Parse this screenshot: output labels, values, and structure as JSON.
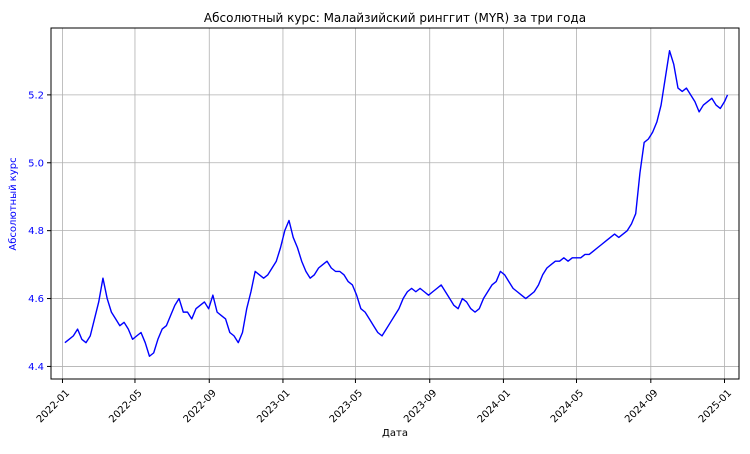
{
  "colors": {
    "line": "#0000ff",
    "ylabel": "#0000ff",
    "ytick": "#0000ff",
    "text": "#000000",
    "grid": "#b0b0b0",
    "axes": "#000000",
    "background": "#ffffff"
  },
  "chart_data": {
    "type": "line",
    "title": "Абсолютный курс: Малайзийский ринггит (MYR) за три года",
    "xlabel": "Дата",
    "ylabel": "Абсолютный курс",
    "grid": true,
    "legend": "none",
    "xlim": [
      "2021-12-13",
      "2025-01-25"
    ],
    "ylim": [
      4.363,
      5.397
    ],
    "x_ticks": [
      {
        "date": "2022-01-01",
        "label": "2022-01"
      },
      {
        "date": "2022-05-01",
        "label": "2022-05"
      },
      {
        "date": "2022-09-01",
        "label": "2022-09"
      },
      {
        "date": "2023-01-01",
        "label": "2023-01"
      },
      {
        "date": "2023-05-01",
        "label": "2023-05"
      },
      {
        "date": "2023-09-01",
        "label": "2023-09"
      },
      {
        "date": "2024-01-01",
        "label": "2024-01"
      },
      {
        "date": "2024-05-01",
        "label": "2024-05"
      },
      {
        "date": "2024-09-01",
        "label": "2024-09"
      },
      {
        "date": "2025-01-01",
        "label": "2025-01"
      }
    ],
    "y_ticks": [
      {
        "value": 4.4,
        "label": "4.4"
      },
      {
        "value": 4.6,
        "label": "4.6"
      },
      {
        "value": 4.8,
        "label": "4.8"
      },
      {
        "value": 5.0,
        "label": "5.0"
      },
      {
        "value": 5.2,
        "label": "5.2"
      }
    ],
    "series": [
      {
        "x": [
          "2022-01-05",
          "2022-01-12",
          "2022-01-19",
          "2022-01-26",
          "2022-02-02",
          "2022-02-09",
          "2022-02-16",
          "2022-02-23",
          "2022-03-02",
          "2022-03-09",
          "2022-03-16",
          "2022-03-23",
          "2022-03-30",
          "2022-04-06",
          "2022-04-13",
          "2022-04-20",
          "2022-04-27",
          "2022-05-04",
          "2022-05-11",
          "2022-05-18",
          "2022-05-25",
          "2022-06-01",
          "2022-06-08",
          "2022-06-15",
          "2022-06-22",
          "2022-06-29",
          "2022-07-06",
          "2022-07-13",
          "2022-07-20",
          "2022-07-27",
          "2022-08-03",
          "2022-08-10",
          "2022-08-17",
          "2022-08-24",
          "2022-08-31",
          "2022-09-07",
          "2022-09-14",
          "2022-09-21",
          "2022-09-28",
          "2022-10-05",
          "2022-10-12",
          "2022-10-19",
          "2022-10-26",
          "2022-11-02",
          "2022-11-09",
          "2022-11-16",
          "2022-11-23",
          "2022-11-30",
          "2022-12-07",
          "2022-12-14",
          "2022-12-21",
          "2022-12-28",
          "2023-01-04",
          "2023-01-11",
          "2023-01-18",
          "2023-01-25",
          "2023-02-01",
          "2023-02-08",
          "2023-02-15",
          "2023-02-22",
          "2023-03-01",
          "2023-03-08",
          "2023-03-15",
          "2023-03-22",
          "2023-03-29",
          "2023-04-05",
          "2023-04-12",
          "2023-04-19",
          "2023-04-26",
          "2023-05-03",
          "2023-05-10",
          "2023-05-17",
          "2023-05-24",
          "2023-05-31",
          "2023-06-07",
          "2023-06-14",
          "2023-06-21",
          "2023-06-28",
          "2023-07-05",
          "2023-07-12",
          "2023-07-19",
          "2023-07-26",
          "2023-08-02",
          "2023-08-09",
          "2023-08-16",
          "2023-08-23",
          "2023-08-30",
          "2023-09-06",
          "2023-09-13",
          "2023-09-20",
          "2023-09-27",
          "2023-10-04",
          "2023-10-11",
          "2023-10-18",
          "2023-10-25",
          "2023-11-01",
          "2023-11-08",
          "2023-11-15",
          "2023-11-22",
          "2023-11-29",
          "2023-12-06",
          "2023-12-13",
          "2023-12-20",
          "2023-12-27",
          "2024-01-03",
          "2024-01-10",
          "2024-01-17",
          "2024-01-24",
          "2024-01-31",
          "2024-02-07",
          "2024-02-14",
          "2024-02-21",
          "2024-02-28",
          "2024-03-06",
          "2024-03-13",
          "2024-03-20",
          "2024-03-27",
          "2024-04-03",
          "2024-04-10",
          "2024-04-17",
          "2024-04-24",
          "2024-05-01",
          "2024-05-08",
          "2024-05-15",
          "2024-05-22",
          "2024-05-29",
          "2024-06-05",
          "2024-06-12",
          "2024-06-19",
          "2024-06-26",
          "2024-07-03",
          "2024-07-10",
          "2024-07-17",
          "2024-07-24",
          "2024-07-31",
          "2024-08-07",
          "2024-08-14",
          "2024-08-21",
          "2024-08-28",
          "2024-09-04",
          "2024-09-11",
          "2024-09-18",
          "2024-09-25",
          "2024-10-02",
          "2024-10-09",
          "2024-10-16",
          "2024-10-23",
          "2024-10-30",
          "2024-11-06",
          "2024-11-13",
          "2024-11-20",
          "2024-11-27",
          "2024-12-04",
          "2024-12-11",
          "2024-12-18",
          "2024-12-25",
          "2025-01-01",
          "2025-01-06"
        ],
        "y": [
          4.47,
          4.48,
          4.49,
          4.51,
          4.48,
          4.47,
          4.49,
          4.54,
          4.59,
          4.66,
          4.6,
          4.56,
          4.54,
          4.52,
          4.53,
          4.51,
          4.48,
          4.49,
          4.5,
          4.47,
          4.43,
          4.44,
          4.48,
          4.51,
          4.52,
          4.55,
          4.58,
          4.6,
          4.56,
          4.56,
          4.54,
          4.57,
          4.58,
          4.59,
          4.57,
          4.61,
          4.56,
          4.55,
          4.54,
          4.5,
          4.49,
          4.47,
          4.5,
          4.57,
          4.62,
          4.68,
          4.67,
          4.66,
          4.67,
          4.69,
          4.71,
          4.75,
          4.8,
          4.83,
          4.78,
          4.75,
          4.71,
          4.68,
          4.66,
          4.67,
          4.69,
          4.7,
          4.71,
          4.69,
          4.68,
          4.68,
          4.67,
          4.65,
          4.64,
          4.61,
          4.57,
          4.56,
          4.54,
          4.52,
          4.5,
          4.49,
          4.51,
          4.53,
          4.55,
          4.57,
          4.6,
          4.62,
          4.63,
          4.62,
          4.63,
          4.62,
          4.61,
          4.62,
          4.63,
          4.64,
          4.62,
          4.6,
          4.58,
          4.57,
          4.6,
          4.59,
          4.57,
          4.56,
          4.57,
          4.6,
          4.62,
          4.64,
          4.65,
          4.68,
          4.67,
          4.65,
          4.63,
          4.62,
          4.61,
          4.6,
          4.61,
          4.62,
          4.64,
          4.67,
          4.69,
          4.7,
          4.71,
          4.71,
          4.72,
          4.71,
          4.72,
          4.72,
          4.72,
          4.73,
          4.73,
          4.74,
          4.75,
          4.76,
          4.77,
          4.78,
          4.79,
          4.78,
          4.79,
          4.8,
          4.82,
          4.85,
          4.97,
          5.06,
          5.07,
          5.09,
          5.12,
          5.17,
          5.25,
          5.33,
          5.29,
          5.22,
          5.21,
          5.22,
          5.2,
          5.18,
          5.15,
          5.17,
          5.18,
          5.19,
          5.17,
          5.16,
          5.18,
          5.2
        ]
      }
    ]
  }
}
